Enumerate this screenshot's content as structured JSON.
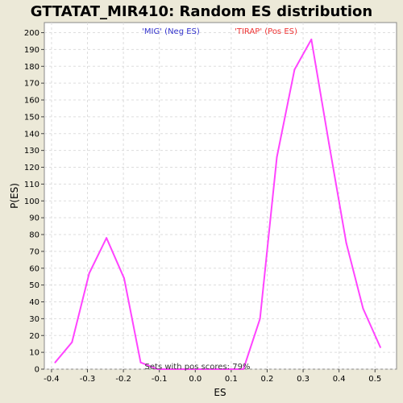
{
  "chart_data": {
    "type": "line",
    "title": "GTTATAT_MIR410: Random ES distribution",
    "xlabel": "ES",
    "ylabel": "P(ES)",
    "xlim": [
      -0.42,
      0.56
    ],
    "ylim": [
      0,
      206
    ],
    "xticks": [
      -0.4,
      -0.3,
      -0.2,
      -0.1,
      0.0,
      0.1,
      0.2,
      0.3,
      0.4,
      0.5
    ],
    "xtick_labels": [
      "-0.4",
      "-0.3",
      "-0.2",
      "-0.1",
      "0.0",
      "0.1",
      "0.2",
      "0.3",
      "0.4",
      "0.5"
    ],
    "yticks": [
      0,
      10,
      20,
      30,
      40,
      50,
      60,
      70,
      80,
      90,
      100,
      110,
      120,
      130,
      140,
      150,
      160,
      170,
      180,
      190,
      200
    ],
    "ytick_labels": [
      "0",
      "10",
      "20",
      "30",
      "40",
      "50",
      "60",
      "70",
      "80",
      "90",
      "100",
      "110",
      "120",
      "130",
      "140",
      "150",
      "160",
      "170",
      "180",
      "190",
      "200"
    ],
    "grid": true,
    "series": [
      {
        "color": "#ff44ff",
        "x": [
          -0.39,
          -0.343,
          -0.295,
          -0.247,
          -0.198,
          -0.152,
          -0.105,
          -0.057,
          -0.01,
          0.038,
          0.086,
          0.134,
          0.18,
          0.227,
          0.276,
          0.323,
          0.372,
          0.42,
          0.467,
          0.515
        ],
        "y": [
          4,
          16,
          57,
          78,
          54,
          4,
          0,
          0,
          0,
          0,
          0,
          0,
          30,
          126,
          178,
          196,
          134,
          75,
          36,
          13
        ]
      }
    ],
    "annotations": [
      {
        "text": "'MIG' (Neg ES)",
        "color": "#3333cc"
      },
      {
        "text": "'TIRAP' (Pos ES)",
        "color": "#ee3333"
      },
      {
        "text": "Sets with pos scores: 79%",
        "color": "#333333"
      }
    ]
  }
}
